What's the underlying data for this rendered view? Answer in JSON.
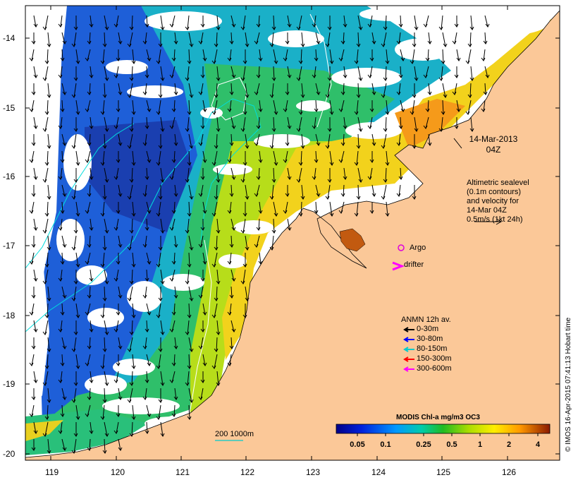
{
  "map": {
    "date_line1": "14-Mar-2013",
    "date_line2": "04Z",
    "altimetry_note": [
      "Altimetric sealevel",
      "(0.1m contours)",
      "and velocity for",
      "14-Mar 04Z",
      "0.5m/s (1kt 24h)"
    ],
    "argo_label": "Argo",
    "drifter_label": "drifter",
    "anmn": {
      "title": "ANMN 12h av.",
      "items": [
        {
          "label": "0-30m",
          "color": "#000000"
        },
        {
          "label": "30-80m",
          "color": "#0000ff"
        },
        {
          "label": "80-150m",
          "color": "#00cccc"
        },
        {
          "label": "150-300m",
          "color": "#ff0000"
        },
        {
          "label": "300-600m",
          "color": "#ff00ff"
        }
      ]
    },
    "depth_legend": "200 1000m",
    "colorbar": {
      "title": "MODIS Chl-a mg/m3 OC3",
      "labels": [
        "0.05",
        "0.1",
        "0.25",
        "0.5",
        "1",
        "2",
        "4"
      ]
    },
    "lat_labels": [
      "-14",
      "-15",
      "-16",
      "-17",
      "-18",
      "-19",
      "-20"
    ],
    "lon_labels": [
      "119",
      "120",
      "121",
      "122",
      "123",
      "124",
      "125",
      "126"
    ],
    "credit": "© IMOS 16-Apr-2015 07:41:13 Hobart time",
    "colors": {
      "land": "#fbc898",
      "argo": "#dd00dd",
      "drifter": "#ff00ff",
      "isobath": "#00dddd"
    }
  }
}
